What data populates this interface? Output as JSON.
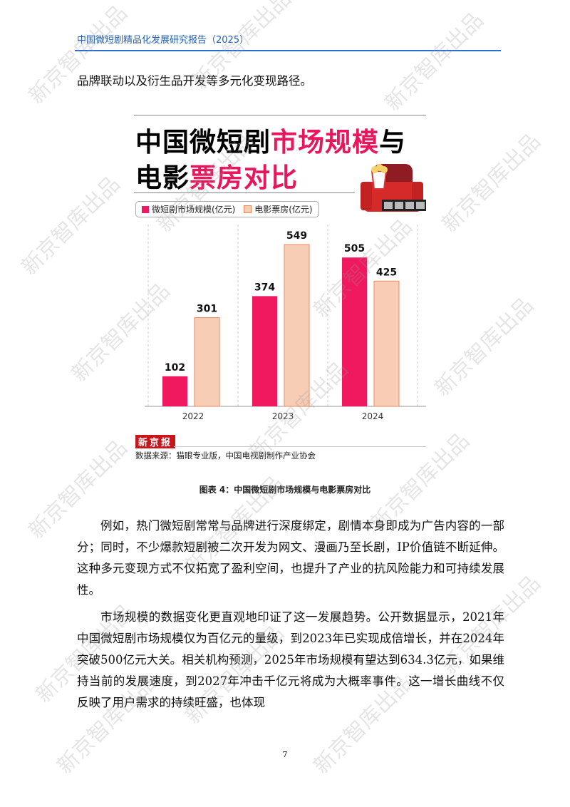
{
  "header": {
    "title": "中国微短剧精品化发展研究报告（2025）"
  },
  "intro_line": "品牌联动以及衍生品开发等多元化变现路径。",
  "figure": {
    "title_black_1": "中国微短剧",
    "title_pink_1": "市场规模",
    "title_black_2": "与",
    "title_black_3": "电影",
    "title_pink_2": "票房对比",
    "logo": "新京报",
    "source": "数据来源：猫眼专业版，中国电视剧制作产业协会",
    "caption": "图表 4：中国微短剧市场规模与电影票房对比"
  },
  "chart_data": {
    "type": "bar",
    "title": "中国微短剧市场规模与电影票房对比",
    "categories": [
      "2022",
      "2023",
      "2024"
    ],
    "series": [
      {
        "name": "微短剧市场规模(亿元)",
        "values": [
          102,
          374,
          505
        ],
        "color": "#f0185f"
      },
      {
        "name": "电影票房(亿元)",
        "values": [
          301,
          549,
          425
        ],
        "color": "#f8cdb5"
      }
    ],
    "ylim": [
      0,
      549
    ],
    "grid": false,
    "legend": "top-left"
  },
  "paragraphs": [
    "例如，热门微短剧常常与品牌进行深度绑定，剧情本身即成为广告内容的一部分；同时，不少爆款短剧被二次开发为网文、漫画乃至长剧，IP价值链不断延伸。这种多元变现方式不仅拓宽了盈利空间，也提升了产业的抗风险能力和可持续发展性。",
    "市场规模的数据变化更直观地印证了这一发展趋势。公开数据显示，2021年中国微短剧市场规模仅为百亿元的量级，到2023年已实现成倍增长，并在2024年突破500亿元大关。相关机构预测，2025年市场规模有望达到634.3亿元，如果维持当前的发展速度，到2027年冲击千亿元将成为大概率事件。这一增长曲线不仅反映了用户需求的持续旺盛，也体现"
  ],
  "page_number": "7",
  "watermark": "新京智库出品"
}
